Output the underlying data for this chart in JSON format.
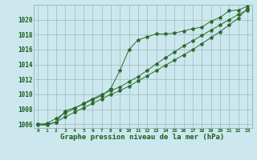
{
  "hours": [
    0,
    1,
    2,
    3,
    4,
    5,
    6,
    7,
    8,
    9,
    10,
    11,
    12,
    13,
    14,
    15,
    16,
    17,
    18,
    19,
    20,
    21,
    22,
    23
  ],
  "line1": [
    1006.0,
    1006.0,
    1006.3,
    1007.8,
    1008.2,
    1008.7,
    1009.3,
    1009.8,
    1010.8,
    1013.2,
    1016.0,
    1017.3,
    1017.7,
    1018.1,
    1018.1,
    1018.2,
    1018.5,
    1018.8,
    1019.0,
    1019.8,
    1020.3,
    1021.2,
    1021.3,
    1021.8
  ],
  "line2": [
    1006.0,
    1006.1,
    1006.8,
    1007.5,
    1008.1,
    1008.8,
    1009.4,
    1010.0,
    1010.5,
    1011.0,
    1011.7,
    1012.4,
    1013.2,
    1014.1,
    1014.9,
    1015.7,
    1016.5,
    1017.2,
    1017.9,
    1018.6,
    1019.3,
    1020.0,
    1020.7,
    1021.3
  ],
  "line3": [
    1005.9,
    1005.9,
    1006.3,
    1007.0,
    1007.6,
    1008.2,
    1008.8,
    1009.4,
    1010.0,
    1010.5,
    1011.1,
    1011.8,
    1012.5,
    1013.2,
    1013.9,
    1014.6,
    1015.3,
    1016.0,
    1016.8,
    1017.6,
    1018.4,
    1019.3,
    1020.2,
    1021.5
  ],
  "line_color": "#2d6b2d",
  "bg_color": "#cce8ee",
  "plot_bg": "#cce8ee",
  "grid_color": "#99bbbb",
  "text_color": "#1a5c1a",
  "xlabel": "Graphe pression niveau de la mer (hPa)",
  "ylim": [
    1005.5,
    1022.0
  ],
  "xlim": [
    -0.5,
    23.5
  ],
  "yticks": [
    1006,
    1008,
    1010,
    1012,
    1014,
    1016,
    1018,
    1020
  ],
  "xticks": [
    0,
    1,
    2,
    3,
    4,
    5,
    6,
    7,
    8,
    9,
    10,
    11,
    12,
    13,
    14,
    15,
    16,
    17,
    18,
    19,
    20,
    21,
    22,
    23
  ],
  "figsize": [
    3.2,
    2.0
  ],
  "dpi": 100
}
